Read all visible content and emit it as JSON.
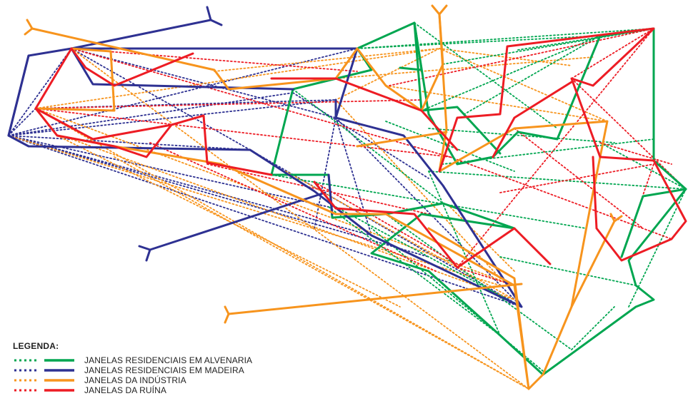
{
  "legend": {
    "title": "LEGENDA:",
    "items": [
      {
        "name": "JANELAS RESIDENCIAIS EM ALVENARIA",
        "color": "#00a650"
      },
      {
        "name": "JANELAS RESIDENCIAIS EM MADEIRA",
        "color": "#2e3192"
      },
      {
        "name": "JANELAS DA INDÚSTRIA",
        "color": "#f7941d"
      },
      {
        "name": "JANELAS DA RUÍNA",
        "color": "#ed1c24"
      }
    ],
    "line_styles": [
      "dotted",
      "solid"
    ]
  }
}
